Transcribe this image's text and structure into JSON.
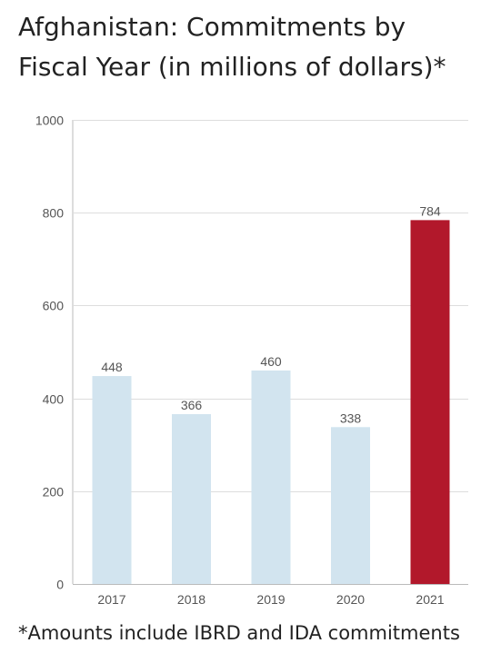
{
  "title": "Afghanistan: Commitments by Fiscal Year (in millions of dollars)*",
  "footnote": "*Amounts include IBRD and IDA commitments",
  "chart_data": {
    "type": "bar",
    "title": "Afghanistan: Commitments by Fiscal Year (in millions of dollars)*",
    "categories": [
      "2017",
      "2018",
      "2019",
      "2020",
      "2021"
    ],
    "values": [
      448,
      366,
      460,
      338,
      784
    ],
    "value_labels": [
      "448",
      "366",
      "460",
      "338",
      "784"
    ],
    "y_ticks": [
      "0",
      "200",
      "400",
      "600",
      "800",
      "1000"
    ],
    "y_tick_values": [
      0,
      200,
      400,
      600,
      800,
      1000
    ],
    "ylim": [
      0,
      1000
    ],
    "grid": true,
    "colors": {
      "default_bar": "#d2e4ef",
      "highlight_bar": "#b2182b",
      "gridline": "#dddddd",
      "axis": "#bbbbbb"
    },
    "highlight_category": "2021"
  }
}
